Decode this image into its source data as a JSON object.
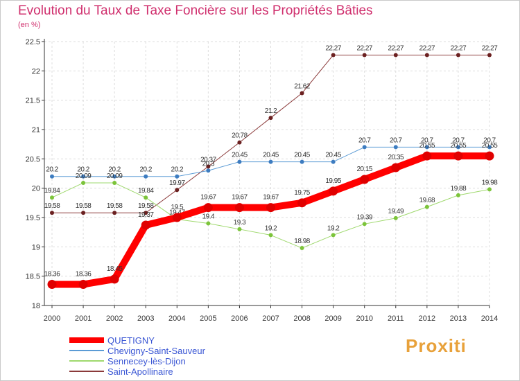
{
  "header": {
    "title": "Evolution du Taux de Taxe Foncière sur les Propriétés Bâties",
    "unit": "(en %)"
  },
  "logo": {
    "text": "Proxiti"
  },
  "colors": {
    "title": "#d0306e",
    "grid": "#dddddd",
    "axis": "#333333",
    "legend_text": "#3a56d4"
  },
  "chart_data": {
    "type": "line",
    "title": "Evolution du Taux de Taxe Foncière sur les Propriétés Bâties",
    "ylabel": "(en %)",
    "xlabel": "",
    "x": [
      "2000",
      "2001",
      "2002",
      "2003",
      "2004",
      "2005",
      "2006",
      "2007",
      "2008",
      "2009",
      "2010",
      "2011",
      "2012",
      "2013",
      "2014"
    ],
    "ylim": [
      18,
      22.5
    ],
    "yticks": [
      "18",
      "18.5",
      "19",
      "19.5",
      "20",
      "20.5",
      "21",
      "21.5",
      "22",
      "22.5"
    ],
    "grid": true,
    "legend_position": "bottom-left",
    "series": [
      {
        "name": "Saint-Apollinaire",
        "color": "#8b3a3a",
        "marker": "#6b2020",
        "width": 1,
        "values": [
          19.58,
          19.58,
          19.58,
          19.58,
          19.97,
          20.37,
          20.78,
          21.2,
          21.62,
          22.27,
          22.27,
          22.27,
          22.27,
          22.27,
          22.27
        ],
        "labels": [
          "19.58",
          "19.58",
          "19.58",
          "19.58",
          "19.97",
          "20.37",
          "20.78",
          "21.2",
          "21.62",
          "22.27",
          "22.27",
          "22.27",
          "22.27",
          "22.27",
          "22.27"
        ]
      },
      {
        "name": "Chevigny-Saint-Sauveur",
        "color": "#5b9bd5",
        "marker": "#3d7cc0",
        "width": 1,
        "values": [
          20.2,
          20.2,
          20.2,
          20.2,
          20.2,
          20.3,
          20.45,
          20.45,
          20.45,
          20.45,
          20.7,
          20.7,
          20.7,
          20.7,
          20.7
        ],
        "labels": [
          "20.2",
          "20.2",
          "20.2",
          "20.2",
          "20.2",
          "20.3",
          "20.45",
          "20.45",
          "20.45",
          "20.45",
          "20.7",
          "20.7",
          "20.7",
          "20.7",
          "20.7"
        ]
      },
      {
        "name": "Sennecey-lès-Dijon",
        "color": "#9ed86c",
        "marker": "#7cc43a",
        "width": 1,
        "values": [
          19.84,
          20.09,
          20.09,
          19.84,
          19.47,
          19.4,
          19.3,
          19.2,
          18.98,
          19.2,
          19.39,
          19.49,
          19.68,
          19.88,
          19.98
        ],
        "labels": [
          "19.84",
          "20.09",
          "20.09",
          "19.84",
          "19.47",
          "19.4",
          "19.3",
          "19.2",
          "18.98",
          "19.2",
          "19.39",
          "19.49",
          "19.68",
          "19.88",
          "19.98"
        ]
      },
      {
        "name": "QUETIGNY",
        "color": "#ff0000",
        "marker": "#e00000",
        "width": 10,
        "values": [
          18.36,
          18.36,
          18.45,
          19.37,
          19.5,
          19.67,
          19.67,
          19.67,
          19.75,
          19.95,
          20.15,
          20.35,
          20.55,
          20.55,
          20.55
        ],
        "labels": [
          "18.36",
          "18.36",
          "18.45",
          "19.37",
          "19.5",
          "19.67",
          "19.67",
          "19.67",
          "19.75",
          "19.95",
          "20.15",
          "20.35",
          "20.55",
          "20.55",
          "20.55"
        ]
      }
    ],
    "legend": [
      "QUETIGNY",
      "Chevigny-Saint-Sauveur",
      "Sennecey-lès-Dijon",
      "Saint-Apollinaire"
    ]
  }
}
